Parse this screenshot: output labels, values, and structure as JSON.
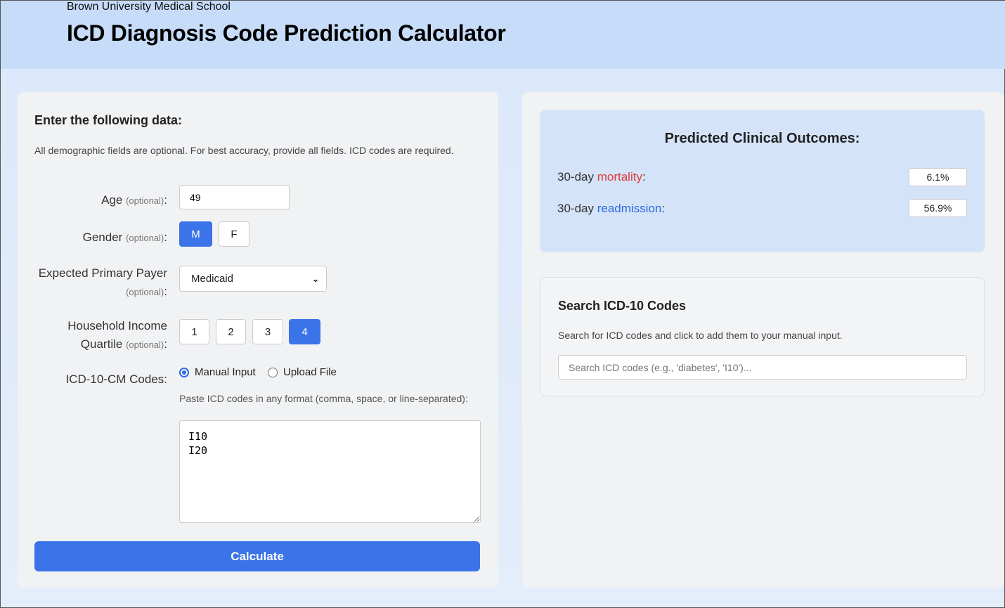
{
  "header": {
    "subtitle": "Brown University Medical School",
    "title": "ICD Diagnosis Code Prediction Calculator"
  },
  "form": {
    "heading": "Enter the following data:",
    "intro": "All demographic fields are optional. For best accuracy, provide all fields. ICD codes are required.",
    "optional": "(optional)",
    "age_label": "Age",
    "age_value": "49",
    "gender_label": "Gender",
    "gender_options": [
      "M",
      "F"
    ],
    "gender_selected": "M",
    "payer_label": "Expected Primary Payer",
    "payer_value": "Medicaid",
    "income_label_1": "Household Income",
    "income_label_2": "Quartile",
    "income_options": [
      "1",
      "2",
      "3",
      "4"
    ],
    "income_selected": "4",
    "icd_label": "ICD-10-CM Codes:",
    "mode_manual": "Manual Input",
    "mode_upload": "Upload File",
    "mode_selected": "Manual Input",
    "paste_hint": "Paste ICD codes in any format (comma, space, or line-separated):",
    "codes": "I10\nI20",
    "calculate": "Calculate"
  },
  "outcomes": {
    "heading": "Predicted Clinical Outcomes:",
    "prefix": "30-day",
    "mortality_word": "mortality",
    "mortality_value": "6.1%",
    "readmission_word": "readmission",
    "readmission_value": "56.9%",
    "mortality_color": "#e03a3a",
    "readmission_color": "#2e6ae0"
  },
  "search": {
    "heading": "Search ICD-10 Codes",
    "desc": "Search for ICD codes and click to add them to your manual input.",
    "placeholder": "Search ICD codes (e.g., 'diabetes', 'I10')..."
  }
}
